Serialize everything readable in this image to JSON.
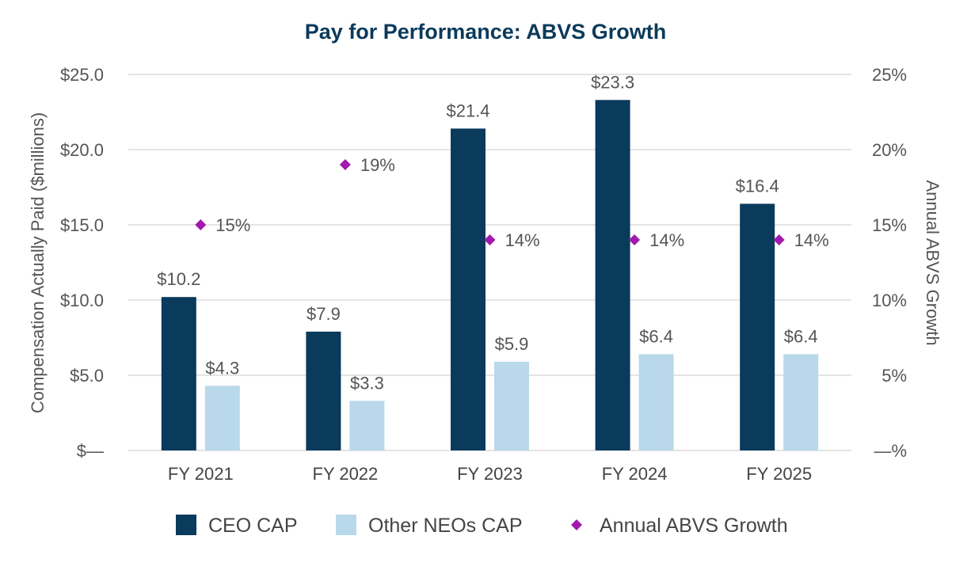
{
  "chart_data": {
    "type": "bar",
    "title": "Pay for Performance: ABVS Growth",
    "categories": [
      "FY 2021",
      "FY 2022",
      "FY 2023",
      "FY 2024",
      "FY 2025"
    ],
    "series": [
      {
        "name": "CEO CAP",
        "axis": "left",
        "values": [
          10.2,
          7.9,
          21.4,
          23.3,
          16.4
        ],
        "labels": [
          "$10.2",
          "$7.9",
          "$21.4",
          "$23.3",
          "$16.4"
        ],
        "color": "#0a3a5c"
      },
      {
        "name": "Other NEOs CAP",
        "axis": "left",
        "values": [
          4.3,
          3.3,
          5.9,
          6.4,
          6.4
        ],
        "labels": [
          "$4.3",
          "$3.3",
          "$5.9",
          "$6.4",
          "$6.4"
        ],
        "color": "#b9d9ea"
      },
      {
        "name": "Annual ABVS Growth",
        "axis": "right",
        "marker": "diamond",
        "values": [
          15,
          19,
          14,
          14,
          14
        ],
        "labels": [
          "15%",
          "19%",
          "14%",
          "14%",
          "14%"
        ],
        "color": "#a11aad"
      }
    ],
    "ylabel": "Compensation Actually Paid ($millions)",
    "y2label": "Annual ABVS Growth",
    "ylim": [
      0,
      25
    ],
    "y2lim": [
      0,
      25
    ],
    "yticks": [
      0,
      5,
      10,
      15,
      20,
      25
    ],
    "ytick_labels": [
      "$—",
      "$5.0",
      "$10.0",
      "$15.0",
      "$20.0",
      "$25.0"
    ],
    "y2ticks": [
      0,
      5,
      10,
      15,
      20,
      25
    ],
    "y2tick_labels": [
      "—%",
      "5%",
      "10%",
      "15%",
      "20%",
      "25%"
    ],
    "grid": true,
    "legend_position": "bottom"
  }
}
